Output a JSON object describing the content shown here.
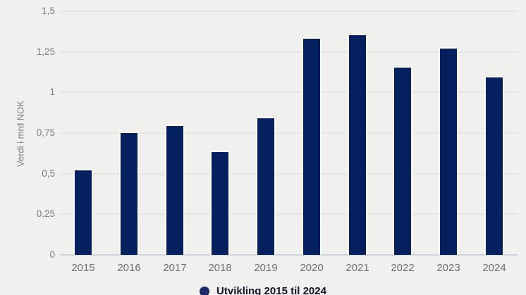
{
  "colors": {
    "background": "#f0f1ee",
    "bar_fill": "#05205e",
    "bar_border": "#fafbf8",
    "gridline": "#e3e6e1",
    "axis_line": "#ccd4e3",
    "tick_label": "#7b7b7b",
    "axis_title": "#7b7b7b",
    "x_label": "#6f6f6f",
    "legend_text": "#13132b",
    "legend_marker": "#1e2b68"
  },
  "chart_data": {
    "type": "bar",
    "categories": [
      "2015",
      "2016",
      "2017",
      "2018",
      "2019",
      "2020",
      "2021",
      "2022",
      "2023",
      "2024"
    ],
    "values": [
      0.53,
      0.76,
      0.8,
      0.64,
      0.85,
      1.34,
      1.36,
      1.16,
      1.28,
      1.1
    ],
    "title": "",
    "xlabel": "",
    "ylabel": "Verdi i mrd NOK",
    "ylim": [
      0,
      1.5
    ],
    "yticks": [
      {
        "value": 0,
        "label": "0"
      },
      {
        "value": 0.25,
        "label": "0,25"
      },
      {
        "value": 0.5,
        "label": "0,5"
      },
      {
        "value": 0.75,
        "label": "0,75"
      },
      {
        "value": 1,
        "label": "1"
      },
      {
        "value": 1.25,
        "label": "1,25"
      },
      {
        "value": 1.5,
        "label": "1,5"
      }
    ],
    "grid": true,
    "legend": {
      "position": "bottom",
      "items": [
        {
          "label": "Utvikling 2015 til 2024",
          "marker": "circle"
        }
      ]
    }
  }
}
